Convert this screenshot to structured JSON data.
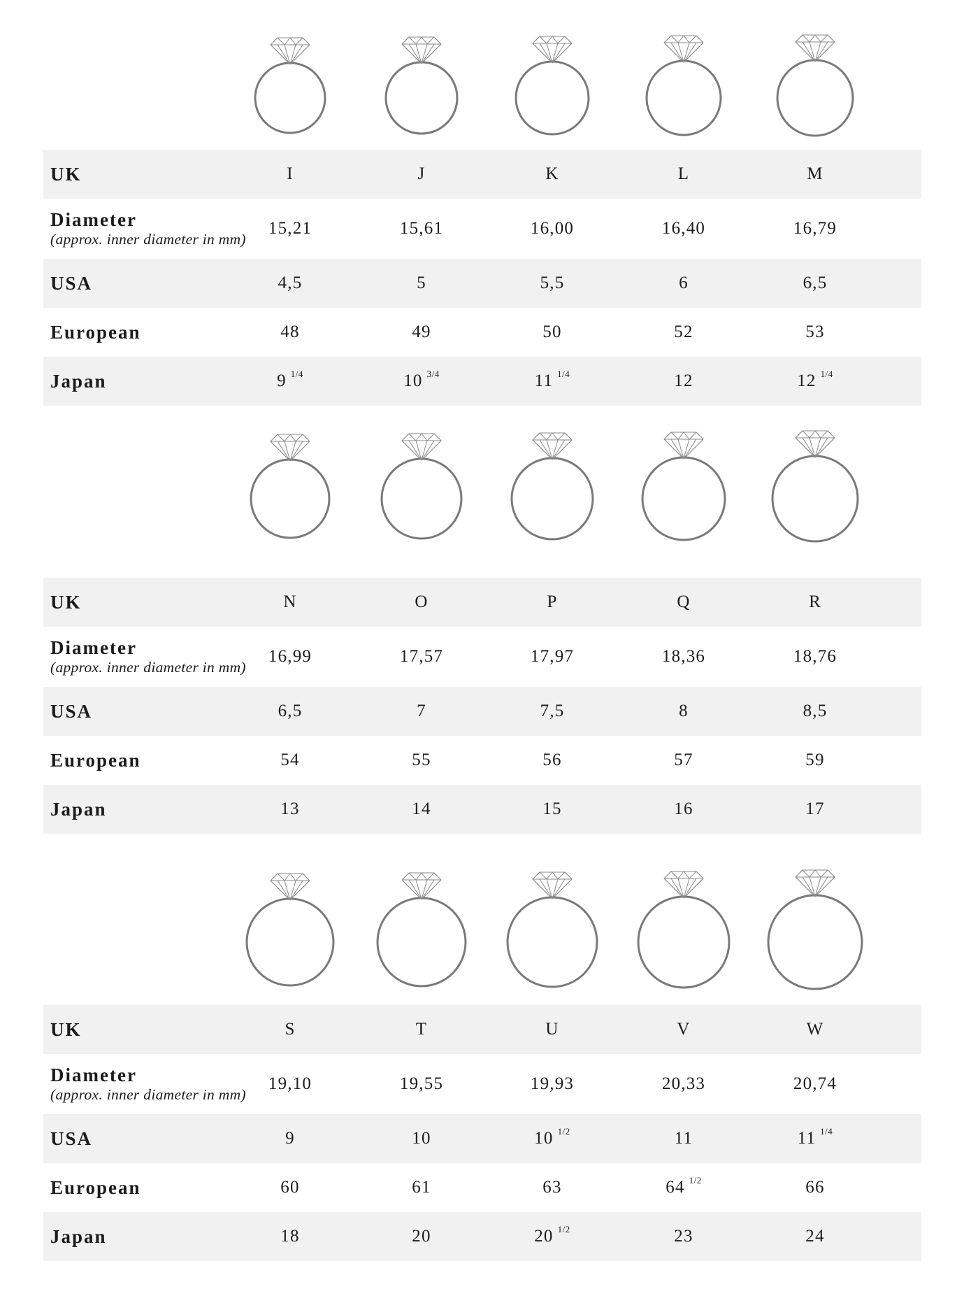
{
  "row_labels": {
    "uk": "UK",
    "diameter": "Diameter",
    "diameter_note": "(approx. inner diameter in mm)",
    "usa": "USA",
    "european": "European",
    "japan": "Japan"
  },
  "sections": [
    {
      "uk": [
        "I",
        "J",
        "K",
        "L",
        "M"
      ],
      "diameter": [
        "15,21",
        "15,61",
        "16,00",
        "16,40",
        "16,79"
      ],
      "usa": [
        {
          "v": "4,5",
          "f": ""
        },
        {
          "v": "5",
          "f": ""
        },
        {
          "v": "5,5",
          "f": ""
        },
        {
          "v": "6",
          "f": ""
        },
        {
          "v": "6,5",
          "f": ""
        }
      ],
      "european": [
        {
          "v": "48",
          "f": ""
        },
        {
          "v": "49",
          "f": ""
        },
        {
          "v": "50",
          "f": ""
        },
        {
          "v": "52",
          "f": ""
        },
        {
          "v": "53",
          "f": ""
        }
      ],
      "japan": [
        {
          "v": "9",
          "f": "1/4"
        },
        {
          "v": "10",
          "f": "3/4"
        },
        {
          "v": "11",
          "f": "1/4"
        },
        {
          "v": "12",
          "f": ""
        },
        {
          "v": "12",
          "f": "1/4"
        }
      ]
    },
    {
      "uk": [
        "N",
        "O",
        "P",
        "Q",
        "R"
      ],
      "diameter": [
        "16,99",
        "17,57",
        "17,97",
        "18,36",
        "18,76"
      ],
      "usa": [
        {
          "v": "6,5",
          "f": ""
        },
        {
          "v": "7",
          "f": ""
        },
        {
          "v": "7,5",
          "f": ""
        },
        {
          "v": "8",
          "f": ""
        },
        {
          "v": "8,5",
          "f": ""
        }
      ],
      "european": [
        {
          "v": "54",
          "f": ""
        },
        {
          "v": "55",
          "f": ""
        },
        {
          "v": "56",
          "f": ""
        },
        {
          "v": "57",
          "f": ""
        },
        {
          "v": "59",
          "f": ""
        }
      ],
      "japan": [
        {
          "v": "13",
          "f": ""
        },
        {
          "v": "14",
          "f": ""
        },
        {
          "v": "15",
          "f": ""
        },
        {
          "v": "16",
          "f": ""
        },
        {
          "v": "17",
          "f": ""
        }
      ]
    },
    {
      "uk": [
        "S",
        "T",
        "U",
        "V",
        "W"
      ],
      "diameter": [
        "19,10",
        "19,55",
        "19,93",
        "20,33",
        "20,74"
      ],
      "usa": [
        {
          "v": "9",
          "f": ""
        },
        {
          "v": "10",
          "f": ""
        },
        {
          "v": "10",
          "f": "1/2"
        },
        {
          "v": "11",
          "f": ""
        },
        {
          "v": "11",
          "f": "1/4"
        }
      ],
      "european": [
        {
          "v": "60",
          "f": ""
        },
        {
          "v": "61",
          "f": ""
        },
        {
          "v": "63",
          "f": ""
        },
        {
          "v": "64",
          "f": "1/2"
        },
        {
          "v": "66",
          "f": ""
        }
      ],
      "japan": [
        {
          "v": "18",
          "f": ""
        },
        {
          "v": "20",
          "f": ""
        },
        {
          "v": "20",
          "f": "1/2"
        },
        {
          "v": "23",
          "f": ""
        },
        {
          "v": "24",
          "f": ""
        }
      ]
    }
  ],
  "colors": {
    "ring_stroke": "#7a7a7a",
    "gem_stroke": "#8a8a8a",
    "row_shade": "#f1f1f1"
  }
}
